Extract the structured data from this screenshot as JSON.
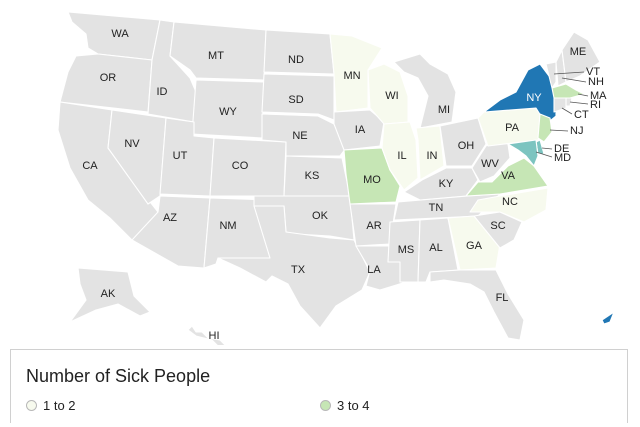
{
  "colors": {
    "none": "#e3e3e3",
    "level_1": "#f7faee",
    "level_2": "#c6e6b5",
    "level_3": "#7cc4c0",
    "level_4": "#2077b4",
    "border": "#ffffff"
  },
  "map": {
    "states": [
      {
        "abbr": "WA",
        "level": 0
      },
      {
        "abbr": "OR",
        "level": 0
      },
      {
        "abbr": "CA",
        "level": 0
      },
      {
        "abbr": "ID",
        "level": 0
      },
      {
        "abbr": "NV",
        "level": 0
      },
      {
        "abbr": "MT",
        "level": 0
      },
      {
        "abbr": "WY",
        "level": 0
      },
      {
        "abbr": "UT",
        "level": 0
      },
      {
        "abbr": "AZ",
        "level": 0
      },
      {
        "abbr": "CO",
        "level": 0
      },
      {
        "abbr": "NM",
        "level": 0
      },
      {
        "abbr": "ND",
        "level": 0
      },
      {
        "abbr": "SD",
        "level": 0
      },
      {
        "abbr": "NE",
        "level": 0
      },
      {
        "abbr": "KS",
        "level": 0
      },
      {
        "abbr": "OK",
        "level": 0
      },
      {
        "abbr": "TX",
        "level": 0
      },
      {
        "abbr": "MN",
        "level": 1
      },
      {
        "abbr": "IA",
        "level": 0
      },
      {
        "abbr": "MO",
        "level": 2
      },
      {
        "abbr": "AR",
        "level": 0
      },
      {
        "abbr": "LA",
        "level": 0
      },
      {
        "abbr": "WI",
        "level": 1
      },
      {
        "abbr": "IL",
        "level": 1
      },
      {
        "abbr": "MI",
        "level": 0
      },
      {
        "abbr": "IN",
        "level": 1
      },
      {
        "abbr": "OH",
        "level": 0
      },
      {
        "abbr": "KY",
        "level": 0
      },
      {
        "abbr": "TN",
        "level": 0
      },
      {
        "abbr": "MS",
        "level": 0
      },
      {
        "abbr": "AL",
        "level": 0
      },
      {
        "abbr": "GA",
        "level": 1
      },
      {
        "abbr": "FL",
        "level": 0
      },
      {
        "abbr": "SC",
        "level": 0
      },
      {
        "abbr": "NC",
        "level": 1
      },
      {
        "abbr": "VA",
        "level": 2
      },
      {
        "abbr": "WV",
        "level": 0
      },
      {
        "abbr": "PA",
        "level": 1
      },
      {
        "abbr": "NY",
        "level": 4
      },
      {
        "abbr": "VT",
        "level": 0
      },
      {
        "abbr": "NH",
        "level": 0
      },
      {
        "abbr": "ME",
        "level": 0
      },
      {
        "abbr": "MA",
        "level": 2
      },
      {
        "abbr": "RI",
        "level": 0
      },
      {
        "abbr": "CT",
        "level": 0
      },
      {
        "abbr": "NJ",
        "level": 2
      },
      {
        "abbr": "DE",
        "level": 3
      },
      {
        "abbr": "MD",
        "level": 3
      },
      {
        "abbr": "AK",
        "level": 0
      },
      {
        "abbr": "HI",
        "level": 0
      }
    ]
  },
  "legend": {
    "title": "Number of Sick People",
    "items": [
      {
        "label": "1 to 2",
        "color": "#f7faee"
      },
      {
        "label": "3 to 4",
        "color": "#c6e6b5"
      }
    ]
  }
}
